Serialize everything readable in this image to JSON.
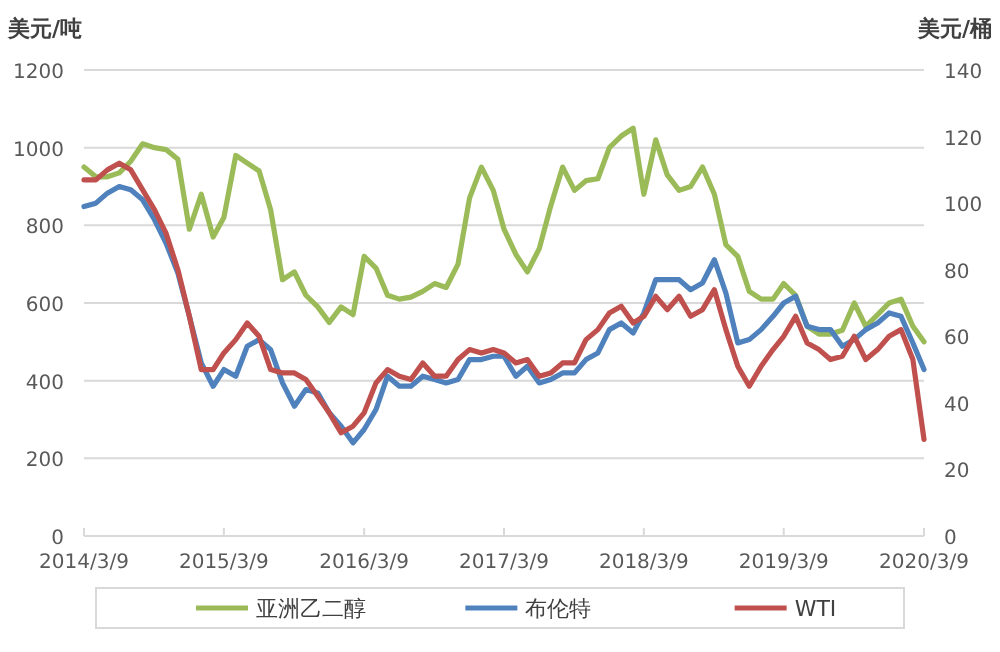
{
  "chart_data": {
    "type": "line",
    "ylabel": "美元/吨",
    "y2label": "美元/桶",
    "x": [
      "2014-03-09",
      "2014-04-09",
      "2014-05-09",
      "2014-06-09",
      "2014-07-09",
      "2014-08-09",
      "2014-09-09",
      "2014-10-09",
      "2014-11-09",
      "2014-12-09",
      "2015-01-09",
      "2015-02-09",
      "2015-03-09",
      "2015-04-09",
      "2015-05-09",
      "2015-06-09",
      "2015-07-09",
      "2015-08-09",
      "2015-09-09",
      "2015-10-09",
      "2015-11-09",
      "2015-12-09",
      "2016-01-09",
      "2016-02-09",
      "2016-03-09",
      "2016-04-09",
      "2016-05-09",
      "2016-06-09",
      "2016-07-09",
      "2016-08-09",
      "2016-09-09",
      "2016-10-09",
      "2016-11-09",
      "2016-12-09",
      "2017-01-09",
      "2017-02-09",
      "2017-03-09",
      "2017-04-09",
      "2017-05-09",
      "2017-06-09",
      "2017-07-09",
      "2017-08-09",
      "2017-09-09",
      "2017-10-09",
      "2017-11-09",
      "2017-12-09",
      "2018-01-09",
      "2018-02-09",
      "2018-03-09",
      "2018-04-09",
      "2018-05-09",
      "2018-06-09",
      "2018-07-09",
      "2018-08-09",
      "2018-09-09",
      "2018-10-09",
      "2018-11-09",
      "2018-12-09",
      "2019-01-09",
      "2019-02-09",
      "2019-03-09",
      "2019-04-09",
      "2019-05-09",
      "2019-06-09",
      "2019-07-09",
      "2019-08-09",
      "2019-09-09",
      "2019-10-09",
      "2019-11-09",
      "2019-12-09",
      "2020-01-09",
      "2020-02-09",
      "2020-03-09"
    ],
    "series": [
      {
        "name": "亚洲乙二醇",
        "color": "#9bbb59",
        "values": [
          950,
          925,
          925,
          935,
          965,
          1010,
          1000,
          995,
          970,
          790,
          880,
          770,
          820,
          980,
          960,
          940,
          840,
          660,
          680,
          620,
          590,
          550,
          590,
          570,
          720,
          690,
          620,
          610,
          615,
          630,
          650,
          640,
          700,
          870,
          950,
          890,
          790,
          725,
          680,
          740,
          850,
          950,
          890,
          915,
          920,
          1000,
          1030,
          1050,
          880,
          1020,
          930,
          890,
          900,
          950,
          880,
          750,
          720,
          630,
          610,
          610,
          650,
          620,
          540,
          520,
          520,
          530,
          600,
          540,
          570,
          600,
          610,
          540,
          500
        ]
      },
      {
        "name": "布伦特",
        "color": "#4f81bd",
        "axis": "y2",
        "values": [
          99,
          100,
          103,
          105,
          104,
          101,
          95,
          88,
          79,
          66,
          52,
          45,
          50,
          48,
          57,
          59,
          56,
          46,
          39,
          44,
          43,
          37,
          33,
          28,
          32,
          38,
          48,
          45,
          45,
          48,
          47,
          46,
          47,
          53,
          53,
          54,
          54,
          48,
          51,
          46,
          47,
          49,
          49,
          53,
          55,
          62,
          64,
          61,
          67,
          77,
          77,
          77,
          74,
          76,
          83,
          73,
          58,
          59,
          62,
          66,
          70,
          72,
          63,
          62,
          62,
          57,
          59,
          62,
          64,
          67,
          66,
          58,
          50
        ]
      },
      {
        "name": "WTI",
        "color": "#c0504d",
        "axis": "y2",
        "values": [
          107,
          107,
          110,
          112,
          110,
          104,
          98,
          91,
          80,
          66,
          50,
          50,
          55,
          59,
          64,
          60,
          50,
          49,
          49,
          47,
          42,
          37,
          31,
          33,
          37,
          46,
          50,
          48,
          47,
          52,
          48,
          48,
          53,
          56,
          55,
          56,
          55,
          52,
          53,
          48,
          49,
          52,
          52,
          59,
          62,
          67,
          69,
          64,
          66,
          72,
          68,
          72,
          66,
          68,
          74,
          62,
          51,
          45,
          51,
          56,
          60,
          66,
          58,
          56,
          53,
          54,
          60,
          53,
          56,
          60,
          62,
          53,
          29
        ]
      }
    ],
    "xlim": [
      "2014-03-09",
      "2020-03-09"
    ],
    "xticks": [
      {
        "value": "2014-03-09",
        "label": "2014/3/9"
      },
      {
        "value": "2015-03-09",
        "label": "2015/3/9"
      },
      {
        "value": "2016-03-09",
        "label": "2016/3/9"
      },
      {
        "value": "2017-03-09",
        "label": "2017/3/9"
      },
      {
        "value": "2018-03-09",
        "label": "2018/3/9"
      },
      {
        "value": "2019-03-09",
        "label": "2019/3/9"
      },
      {
        "value": "2020-03-09",
        "label": "2020/3/9"
      }
    ],
    "ylim": [
      0,
      1200
    ],
    "yticks": [
      0,
      200,
      400,
      600,
      800,
      1000,
      1200
    ],
    "y2lim": [
      0,
      140
    ],
    "y2ticks": [
      0,
      20,
      40,
      60,
      80,
      100,
      120,
      140
    ],
    "grid": "y",
    "legend": "bottom",
    "line_style": "solid"
  }
}
